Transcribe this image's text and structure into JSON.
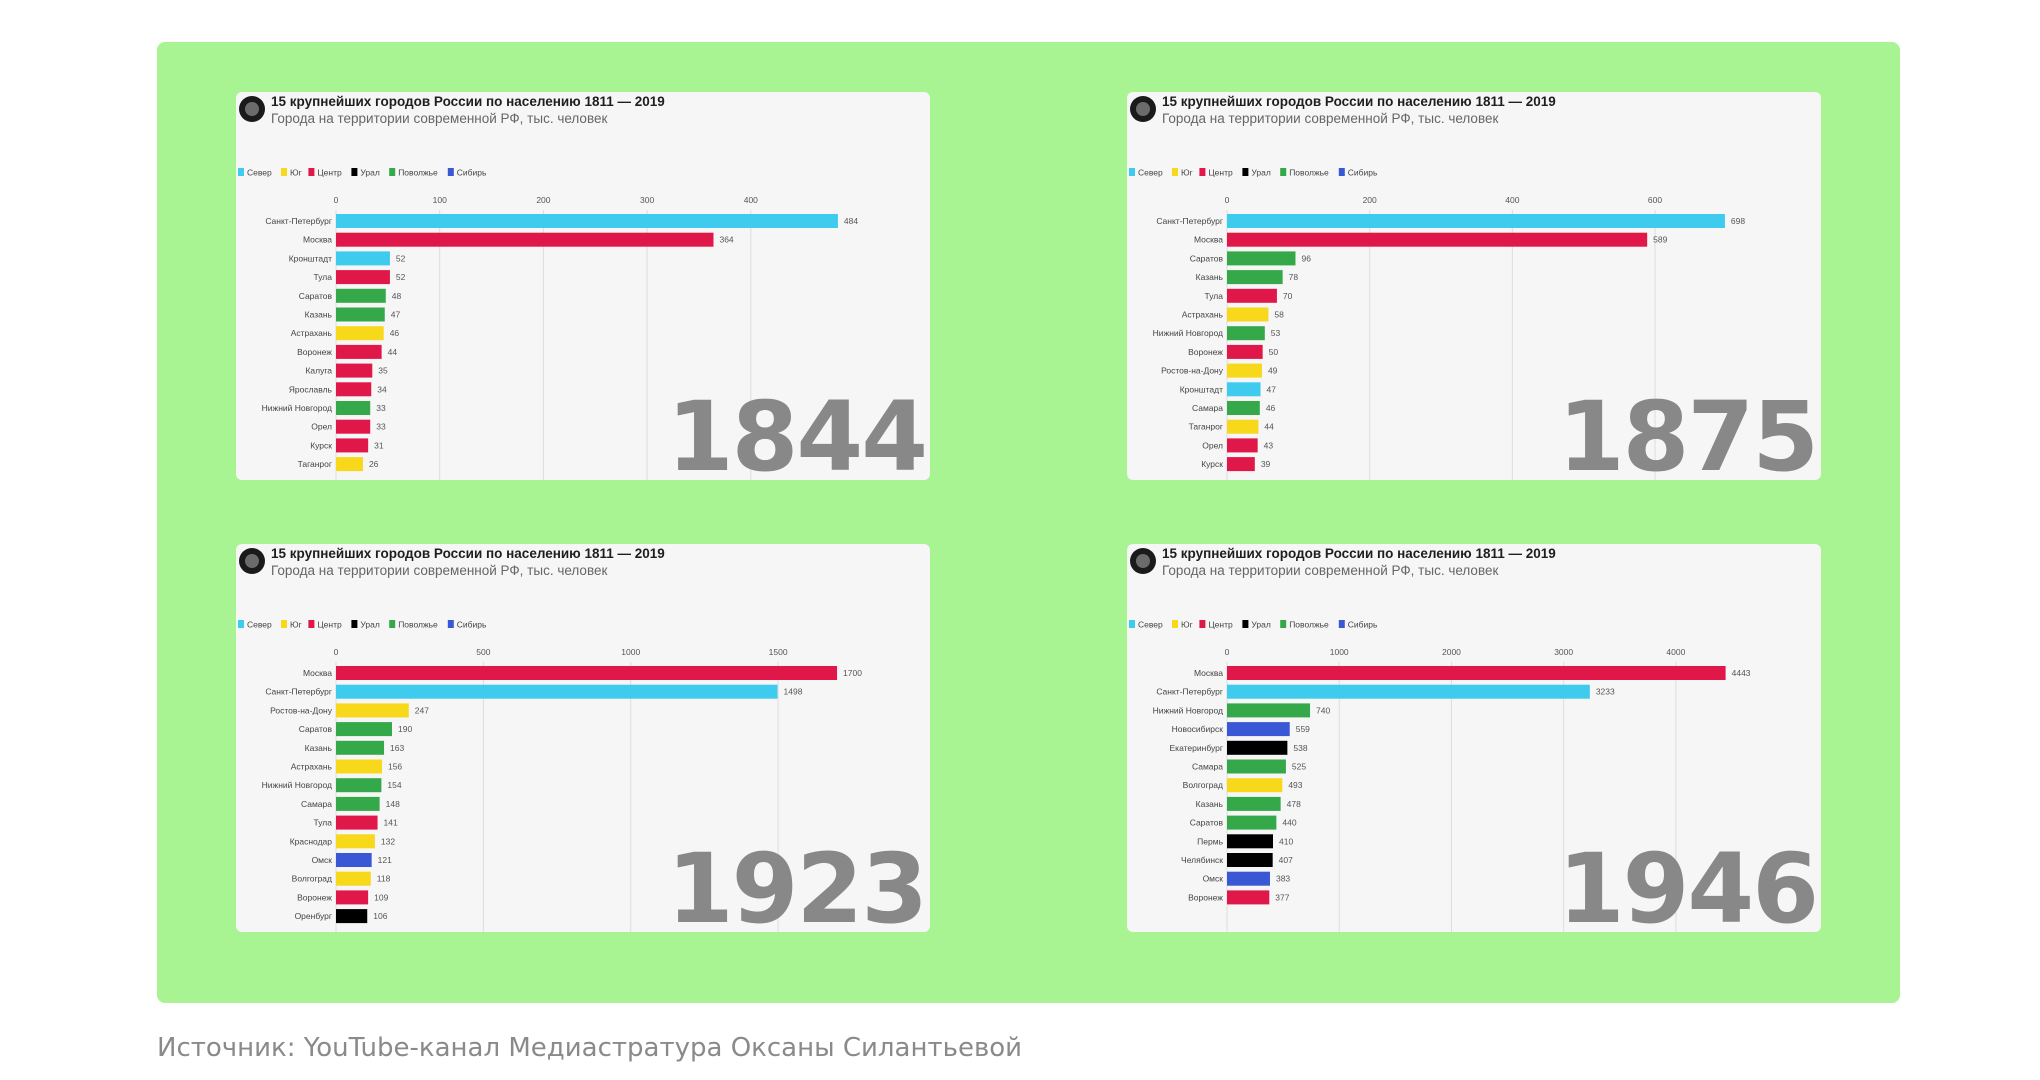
{
  "source": "Источник: YouTube-канал Медиастратура Оксаны Силантьевой",
  "colors": {
    "Север": "#3ecbee",
    "Юг": "#f8d81a",
    "Центр": "#e0184a",
    "Урал": "#000000",
    "Поволжье": "#35a94a",
    "Сибирь": "#3a57d6"
  },
  "chart_data": [
    {
      "type": "bar",
      "title": "15 крупнейших городов России по населению 1811 — 2019",
      "subtitle": "Города на территории современной РФ, тыс. человек",
      "year": "1844",
      "legend": [
        "Север",
        "Юг",
        "Центр",
        "Урал",
        "Поволжье",
        "Сибирь"
      ],
      "xticks": [
        0,
        100,
        200,
        300,
        400
      ],
      "xmax": 540,
      "categories": [
        "Санкт-Петербург",
        "Москва",
        "Кронштадт",
        "Тула",
        "Саратов",
        "Казань",
        "Астрахань",
        "Воронеж",
        "Калуга",
        "Ярославль",
        "Нижний Новгород",
        "Орел",
        "Курск",
        "Таганрог"
      ],
      "values": [
        484,
        364,
        52,
        52,
        48,
        47,
        46,
        44,
        35,
        34,
        33,
        33,
        31,
        26
      ],
      "regions": [
        "Север",
        "Центр",
        "Север",
        "Центр",
        "Поволжье",
        "Поволжье",
        "Юг",
        "Центр",
        "Центр",
        "Центр",
        "Поволжье",
        "Центр",
        "Центр",
        "Юг"
      ]
    },
    {
      "type": "bar",
      "title": "15 крупнейших городов России по населению 1811 — 2019",
      "subtitle": "Города на территории современной РФ, тыс. человек",
      "year": "1875",
      "legend": [
        "Север",
        "Юг",
        "Центр",
        "Урал",
        "Поволжье",
        "Сибирь"
      ],
      "xticks": [
        0,
        200,
        400,
        600
      ],
      "xmax": 785,
      "categories": [
        "Санкт-Петербург",
        "Москва",
        "Саратов",
        "Казань",
        "Тула",
        "Астрахань",
        "Нижний Новгород",
        "Воронеж",
        "Ростов-на-Дону",
        "Кронштадт",
        "Самара",
        "Таганрог",
        "Орел",
        "Курск"
      ],
      "values": [
        698,
        589,
        96,
        78,
        70,
        58,
        53,
        50,
        49,
        47,
        46,
        44,
        43,
        39
      ],
      "regions": [
        "Север",
        "Центр",
        "Поволжье",
        "Поволжье",
        "Центр",
        "Юг",
        "Поволжье",
        "Центр",
        "Юг",
        "Север",
        "Поволжье",
        "Юг",
        "Центр",
        "Центр"
      ]
    },
    {
      "type": "bar",
      "title": "15 крупнейших городов России по населению 1811 — 2019",
      "subtitle": "Города на территории современной РФ, тыс. человек",
      "year": "1923",
      "legend": [
        "Север",
        "Юг",
        "Центр",
        "Урал",
        "Поволжье",
        "Сибирь"
      ],
      "xticks": [
        0,
        500,
        1000,
        1500
      ],
      "xmax": 1900,
      "categories": [
        "Москва",
        "Санкт-Петербург",
        "Ростов-на-Дону",
        "Саратов",
        "Казань",
        "Астрахань",
        "Нижний Новгород",
        "Самара",
        "Тула",
        "Краснодар",
        "Омск",
        "Волгоград",
        "Воронеж",
        "Оренбург"
      ],
      "values": [
        1700,
        1498,
        247,
        190,
        163,
        156,
        154,
        148,
        141,
        132,
        121,
        118,
        109,
        106
      ],
      "regions": [
        "Центр",
        "Север",
        "Юг",
        "Поволжье",
        "Поволжье",
        "Юг",
        "Поволжье",
        "Поволжье",
        "Центр",
        "Юг",
        "Сибирь",
        "Юг",
        "Центр",
        "Урал"
      ]
    },
    {
      "type": "bar",
      "title": "15 крупнейших городов России по населению 1811 — 2019",
      "subtitle": "Города на территории современной РФ, тыс. человек",
      "year": "1946",
      "legend": [
        "Север",
        "Юг",
        "Центр",
        "Урал",
        "Поволжье",
        "Сибирь"
      ],
      "xticks": [
        0,
        1000,
        2000,
        3000,
        4000
      ],
      "xmax": 4990,
      "categories": [
        "Москва",
        "Санкт-Петербург",
        "Нижний Новгород",
        "Новосибирск",
        "Екатеринбург",
        "Самара",
        "Волгоград",
        "Казань",
        "Саратов",
        "Пермь",
        "Челябинск",
        "Омск",
        "Воронеж"
      ],
      "values": [
        4443,
        3233,
        740,
        559,
        538,
        525,
        493,
        478,
        440,
        410,
        407,
        383,
        377
      ],
      "regions": [
        "Центр",
        "Север",
        "Поволжье",
        "Сибирь",
        "Урал",
        "Поволжье",
        "Юг",
        "Поволжье",
        "Поволжье",
        "Урал",
        "Урал",
        "Сибирь",
        "Центр"
      ]
    }
  ]
}
